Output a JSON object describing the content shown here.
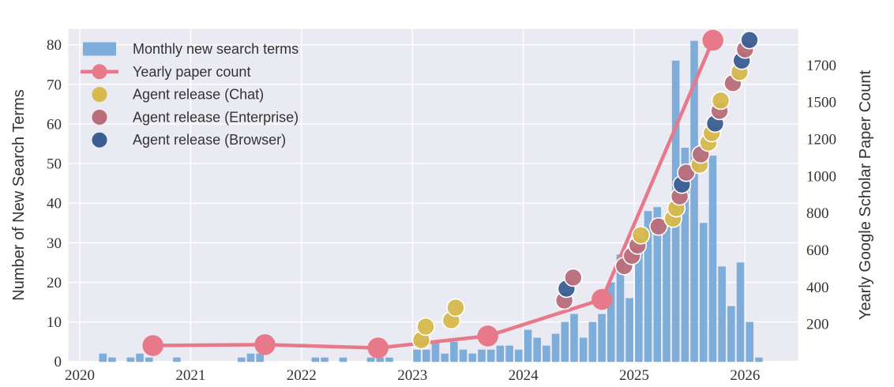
{
  "figure": {
    "left_axis": {
      "label": "Number of New Search Terms",
      "tick_labels": [
        "0",
        "10",
        "20",
        "30",
        "40",
        "50",
        "60",
        "70",
        "80"
      ],
      "tick_values": [
        0,
        10,
        20,
        30,
        40,
        50,
        60,
        70,
        80
      ]
    },
    "right_axis": {
      "label": "Yearly Google Scholar Paper Count",
      "tick_labels": [
        "200",
        "400",
        "600",
        "800",
        "1000",
        "1200",
        "1500",
        "1700"
      ],
      "tick_values": [
        200,
        400,
        600,
        800,
        1000,
        1200,
        1500,
        1700
      ]
    },
    "x_axis": {
      "tick_labels": [
        "2020",
        "2021",
        "2022",
        "2023",
        "2024",
        "2025",
        "2026"
      ],
      "tick_values": [
        2020,
        2021,
        2022,
        2023,
        2024,
        2025,
        2026
      ]
    },
    "legend": {
      "items": [
        {
          "label": "Monthly new search terms",
          "swatch": "bar",
          "color": "#7fadda"
        },
        {
          "label": "Yearly paper count",
          "swatch": "line-marker",
          "color": "#e8798b"
        },
        {
          "label": "Agent release (Chat)",
          "swatch": "dot",
          "color": "#d6b84c"
        },
        {
          "label": "Agent release (Enterprise)",
          "swatch": "dot",
          "color": "#b96d79"
        },
        {
          "label": "Agent release (Browser)",
          "swatch": "dot",
          "color": "#3a5e92"
        }
      ]
    },
    "colors": {
      "bar": "#7fadda",
      "line": "#e8798b",
      "chat": "#d6b84c",
      "enterprise": "#b96d79",
      "browser": "#3a5e92",
      "plot_bg": "#eaeaf2",
      "grid": "#ffffff",
      "text": "#333333"
    }
  },
  "chart_data": {
    "type": "combo-bar-line-scatter",
    "title": "",
    "x_range": [
      2019.9,
      2026.53
    ],
    "left_ylim": [
      0,
      84
    ],
    "bar_series": {
      "name": "Monthly new search terms",
      "y_axis": "left",
      "points": [
        [
          "2020-03",
          2
        ],
        [
          "2020-04",
          1
        ],
        [
          "2020-06",
          1
        ],
        [
          "2020-07",
          2
        ],
        [
          "2020-08",
          1
        ],
        [
          "2020-11",
          1
        ],
        [
          "2021-06",
          1
        ],
        [
          "2021-07",
          2
        ],
        [
          "2021-08",
          2
        ],
        [
          "2022-02",
          1
        ],
        [
          "2022-03",
          1
        ],
        [
          "2022-05",
          1
        ],
        [
          "2022-08",
          1
        ],
        [
          "2022-09",
          1
        ],
        [
          "2022-10",
          1
        ],
        [
          "2023-01",
          3
        ],
        [
          "2023-02",
          3
        ],
        [
          "2023-03",
          5
        ],
        [
          "2023-04",
          2
        ],
        [
          "2023-05",
          5
        ],
        [
          "2023-06",
          3
        ],
        [
          "2023-07",
          2
        ],
        [
          "2023-08",
          3
        ],
        [
          "2023-09",
          3
        ],
        [
          "2023-10",
          4
        ],
        [
          "2023-11",
          4
        ],
        [
          "2023-12",
          3
        ],
        [
          "2024-01",
          8
        ],
        [
          "2024-02",
          6
        ],
        [
          "2024-03",
          4
        ],
        [
          "2024-04",
          7
        ],
        [
          "2024-05",
          10
        ],
        [
          "2024-06",
          12
        ],
        [
          "2024-07",
          6
        ],
        [
          "2024-08",
          10
        ],
        [
          "2024-09",
          12
        ],
        [
          "2024-10",
          20
        ],
        [
          "2024-11",
          27
        ],
        [
          "2024-12",
          16
        ],
        [
          "2025-01",
          29
        ],
        [
          "2025-02",
          38
        ],
        [
          "2025-03",
          39
        ],
        [
          "2025-04",
          34
        ],
        [
          "2025-05",
          76
        ],
        [
          "2025-06",
          54
        ],
        [
          "2025-07",
          81
        ],
        [
          "2025-08",
          35
        ],
        [
          "2025-09",
          52
        ],
        [
          "2025-10",
          24
        ],
        [
          "2025-11",
          14
        ],
        [
          "2025-12",
          25
        ],
        [
          "2026-01",
          10
        ],
        [
          "2026-02",
          1
        ]
      ]
    },
    "line_series": {
      "name": "Yearly paper count",
      "y_axis": "right",
      "points": [
        {
          "x": 2020.66,
          "y": 85
        },
        {
          "x": 2021.67,
          "y": 90
        },
        {
          "x": 2022.69,
          "y": 72
        },
        {
          "x": 2023.68,
          "y": 136
        },
        {
          "x": 2024.71,
          "y": 333
        },
        {
          "x": 2025.71,
          "y": 1834
        }
      ]
    },
    "event_series": [
      {
        "name": "Agent release (Chat)",
        "key": "chat",
        "y_axis": "left",
        "points": [
          [
            2023.08,
            5.4
          ],
          [
            2023.12,
            8.8
          ],
          [
            2023.35,
            10.4
          ],
          [
            2023.39,
            13.6
          ],
          [
            2025.06,
            31.9
          ],
          [
            2025.35,
            36.1
          ],
          [
            2025.38,
            38.7
          ],
          [
            2025.59,
            49.7
          ],
          [
            2025.67,
            55.3
          ],
          [
            2025.7,
            57.7
          ],
          [
            2025.78,
            65.9
          ],
          [
            2025.95,
            73.1
          ]
        ]
      },
      {
        "name": "Agent release (Enterprise)",
        "key": "enterprise",
        "y_axis": "left",
        "points": [
          [
            2024.37,
            15.4
          ],
          [
            2024.45,
            21.2
          ],
          [
            2024.91,
            24.1
          ],
          [
            2024.98,
            26.7
          ],
          [
            2025.03,
            29.3
          ],
          [
            2025.22,
            34.1
          ],
          [
            2025.41,
            41.7
          ],
          [
            2025.47,
            47.7
          ],
          [
            2025.6,
            52.3
          ],
          [
            2025.77,
            63.3
          ],
          [
            2025.89,
            70.3
          ],
          [
            2026.0,
            78.8
          ]
        ]
      },
      {
        "name": "Agent release (Browser)",
        "key": "browser",
        "y_axis": "left",
        "points": [
          [
            2024.39,
            18.4
          ],
          [
            2025.43,
            44.7
          ],
          [
            2025.73,
            60.1
          ],
          [
            2025.97,
            76.0
          ],
          [
            2026.04,
            81.2
          ]
        ]
      }
    ]
  }
}
